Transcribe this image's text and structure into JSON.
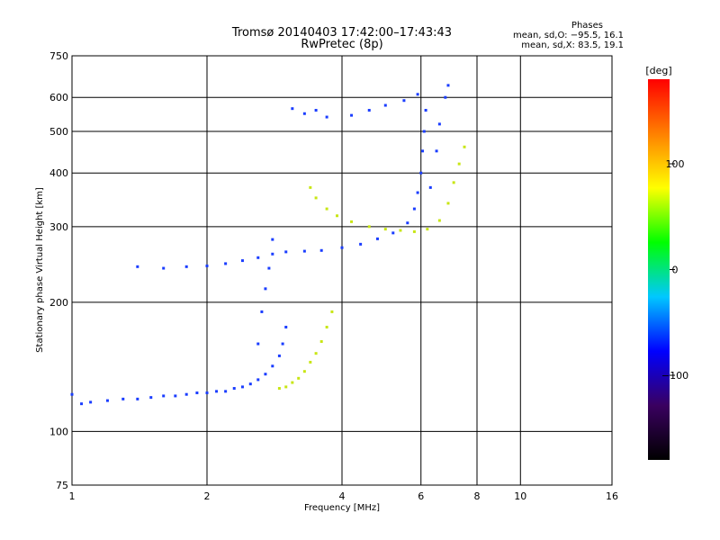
{
  "chart_data": {
    "type": "scatter",
    "title": "Tromsø 20140403 17:42:00–17:43:43",
    "subtitle": "RwPretec (8p)",
    "xlabel": "Frequency [MHz]",
    "ylabel": "Stationary phase Virtual Height [km]",
    "x_scale": "log",
    "y_scale": "log",
    "xlim": [
      1,
      16
    ],
    "ylim": [
      75,
      750
    ],
    "x_ticks": [
      1,
      2,
      4,
      6,
      8,
      10,
      16
    ],
    "x_tick_labels": [
      "1",
      "2",
      "4",
      "6",
      "8",
      "10",
      "16"
    ],
    "y_ticks": [
      75,
      100,
      200,
      300,
      400,
      500,
      600,
      750
    ],
    "y_tick_labels": [
      "75",
      "100",
      "200",
      "300",
      "400",
      "500",
      "600",
      "750"
    ],
    "grid": true,
    "annotation": {
      "heading": "Phases",
      "line_o": "mean, sd,O: −95.5, 16.1",
      "line_x": "mean, sd,X: 83.5, 19.1"
    },
    "colorbar": {
      "label": "[deg]",
      "range": [
        -180,
        180
      ],
      "ticks": [
        100,
        0,
        -100
      ],
      "tick_labels": [
        "100",
        "0",
        "−100"
      ],
      "colors": [
        "#000000",
        "#3a0060",
        "#0000ff",
        "#00c8ff",
        "#00ff00",
        "#ffff00",
        "#ff8000",
        "#ff0000"
      ]
    },
    "series": [
      {
        "mode": "O",
        "phase_deg": -95,
        "color": "#1a3dff",
        "points": [
          [
            1.0,
            122
          ],
          [
            1.05,
            116
          ],
          [
            1.1,
            117
          ],
          [
            1.2,
            118
          ],
          [
            1.3,
            119
          ],
          [
            1.4,
            119
          ],
          [
            1.5,
            120
          ],
          [
            1.6,
            121
          ],
          [
            1.7,
            121
          ],
          [
            1.8,
            122
          ],
          [
            1.9,
            123
          ],
          [
            2.0,
            123
          ],
          [
            2.1,
            124
          ],
          [
            2.2,
            124
          ],
          [
            2.3,
            126
          ],
          [
            2.4,
            127
          ],
          [
            2.5,
            129
          ],
          [
            2.6,
            132
          ],
          [
            2.7,
            136
          ],
          [
            2.8,
            142
          ],
          [
            2.9,
            150
          ],
          [
            2.95,
            160
          ],
          [
            3.0,
            175
          ],
          [
            1.4,
            242
          ],
          [
            1.6,
            240
          ],
          [
            1.8,
            242
          ],
          [
            2.0,
            243
          ],
          [
            2.2,
            246
          ],
          [
            2.4,
            250
          ],
          [
            2.6,
            254
          ],
          [
            2.8,
            259
          ],
          [
            3.0,
            262
          ],
          [
            3.3,
            263
          ],
          [
            3.6,
            264
          ],
          [
            4.0,
            268
          ],
          [
            4.4,
            273
          ],
          [
            4.8,
            281
          ],
          [
            5.2,
            290
          ],
          [
            5.6,
            306
          ],
          [
            5.8,
            330
          ],
          [
            5.9,
            360
          ],
          [
            6.0,
            400
          ],
          [
            6.05,
            450
          ],
          [
            6.1,
            500
          ],
          [
            6.15,
            560
          ],
          [
            2.6,
            160
          ],
          [
            2.65,
            190
          ],
          [
            2.7,
            215
          ],
          [
            2.75,
            240
          ],
          [
            2.8,
            280
          ],
          [
            3.1,
            565
          ],
          [
            3.3,
            550
          ],
          [
            3.5,
            560
          ],
          [
            3.7,
            540
          ],
          [
            4.2,
            545
          ],
          [
            4.6,
            560
          ],
          [
            5.0,
            575
          ],
          [
            5.5,
            590
          ],
          [
            5.9,
            610
          ],
          [
            6.3,
            370
          ],
          [
            6.5,
            450
          ],
          [
            6.6,
            520
          ],
          [
            6.8,
            600
          ],
          [
            6.9,
            640
          ]
        ]
      },
      {
        "mode": "X",
        "phase_deg": 85,
        "color": "#c8e614",
        "points": [
          [
            2.9,
            126
          ],
          [
            3.0,
            127
          ],
          [
            3.1,
            130
          ],
          [
            3.2,
            133
          ],
          [
            3.3,
            138
          ],
          [
            3.4,
            145
          ],
          [
            3.5,
            152
          ],
          [
            3.6,
            162
          ],
          [
            3.7,
            175
          ],
          [
            3.8,
            190
          ],
          [
            3.4,
            370
          ],
          [
            3.5,
            350
          ],
          [
            3.7,
            330
          ],
          [
            3.9,
            318
          ],
          [
            4.2,
            308
          ],
          [
            4.6,
            300
          ],
          [
            5.0,
            296
          ],
          [
            5.4,
            294
          ],
          [
            5.8,
            292
          ],
          [
            6.2,
            296
          ],
          [
            6.6,
            310
          ],
          [
            6.9,
            340
          ],
          [
            7.1,
            380
          ],
          [
            7.3,
            420
          ],
          [
            7.5,
            460
          ]
        ]
      }
    ]
  }
}
